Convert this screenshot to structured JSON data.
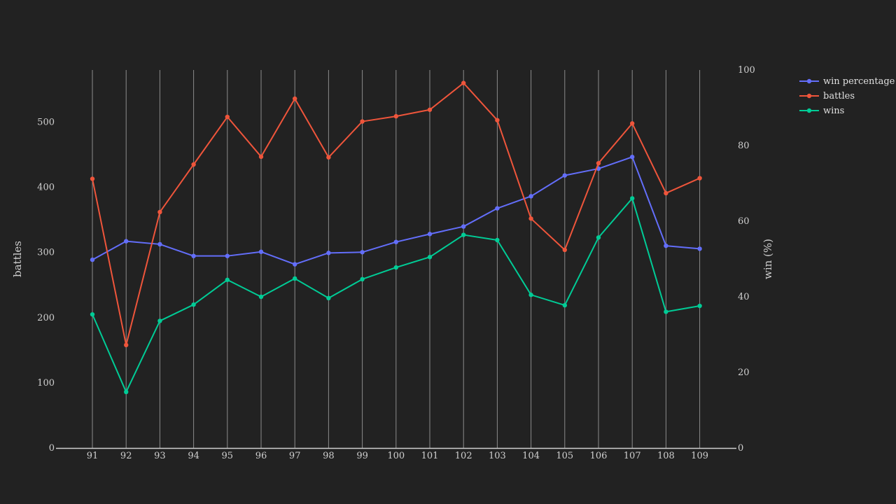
{
  "chart_data": {
    "type": "line",
    "x": [
      91,
      92,
      93,
      94,
      95,
      96,
      97,
      98,
      99,
      100,
      101,
      102,
      103,
      104,
      105,
      106,
      107,
      108,
      109
    ],
    "series": [
      {
        "name": "win percentage",
        "axis": "y2",
        "color": "#636efa",
        "values": [
          49.8,
          54.7,
          53.9,
          50.8,
          50.8,
          51.9,
          48.6,
          51.6,
          51.8,
          54.5,
          56.6,
          58.6,
          63.4,
          66.6,
          72.1,
          73.9,
          77.0,
          53.5,
          52.7
        ]
      },
      {
        "name": "battles",
        "axis": "y",
        "color": "#ef553b",
        "values": [
          413,
          158,
          362,
          435,
          508,
          447,
          536,
          446,
          501,
          509,
          519,
          560,
          503,
          352,
          304,
          437,
          498,
          391,
          414
        ]
      },
      {
        "name": "wins",
        "axis": "y",
        "color": "#00cc96",
        "values": [
          205,
          86,
          195,
          220,
          258,
          232,
          260,
          230,
          259,
          277,
          293,
          327,
          319,
          235,
          219,
          323,
          383,
          209,
          218
        ]
      }
    ],
    "ylabel": "battles",
    "y2label": "win (%)",
    "ylim": [
      0,
      580
    ],
    "y2lim": [
      0,
      100
    ],
    "yticks": [
      "0",
      "100",
      "200",
      "300",
      "400",
      "500"
    ],
    "y2ticks": [
      "0",
      "20",
      "40",
      "60",
      "80",
      "100"
    ],
    "grid": "vertical",
    "legend_position": "top-right"
  }
}
